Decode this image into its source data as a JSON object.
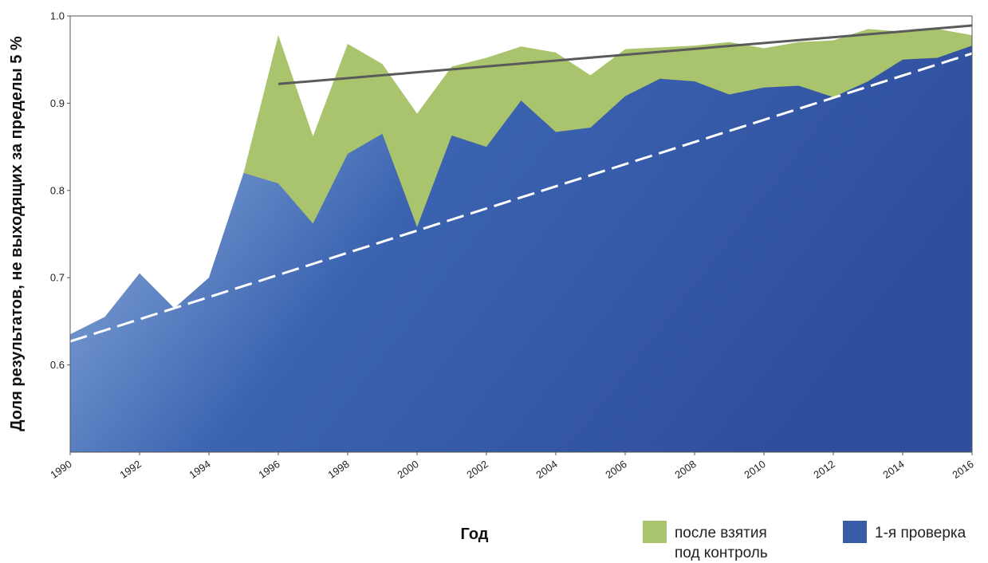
{
  "chart_data": {
    "type": "area",
    "xlabel": "Год",
    "ylabel": "Доля результатов, не выходящих за пределы 5 %",
    "xlim": [
      1990,
      2016
    ],
    "ylim": [
      0.5,
      1.0
    ],
    "x_ticks": [
      "1990",
      "1992",
      "1994",
      "1996",
      "1998",
      "2000",
      "2002",
      "2004",
      "2006",
      "2008",
      "2010",
      "2012",
      "2014",
      "2016"
    ],
    "y_ticks": [
      "0.6",
      "0.7",
      "0.8",
      "0.9",
      "1.0"
    ],
    "x": [
      1990,
      1991,
      1992,
      1993,
      1994,
      1995,
      1996,
      1997,
      1998,
      1999,
      2000,
      2001,
      2002,
      2003,
      2004,
      2005,
      2006,
      2007,
      2008,
      2009,
      2010,
      2011,
      2012,
      2013,
      2014,
      2015,
      2016
    ],
    "series": [
      {
        "name": "после взятия под контроль",
        "color": "#a9c46c",
        "values": [
          0.635,
          0.655,
          0.705,
          0.665,
          0.7,
          0.82,
          0.978,
          0.862,
          0.968,
          0.945,
          0.888,
          0.942,
          0.952,
          0.965,
          0.958,
          0.932,
          0.962,
          0.964,
          0.966,
          0.97,
          0.963,
          0.97,
          0.972,
          0.985,
          0.982,
          0.985,
          0.978
        ]
      },
      {
        "name": "1-я проверка",
        "color": "#3a5ca8",
        "values": [
          0.635,
          0.655,
          0.705,
          0.665,
          0.7,
          0.82,
          0.808,
          0.762,
          0.842,
          0.865,
          0.758,
          0.863,
          0.85,
          0.903,
          0.867,
          0.872,
          0.908,
          0.928,
          0.925,
          0.91,
          0.918,
          0.92,
          0.907,
          0.925,
          0.95,
          0.952,
          0.966
        ]
      }
    ],
    "trend_control": {
      "x": [
        1996,
        2016
      ],
      "y": [
        0.922,
        0.989
      ]
    },
    "trend_first": {
      "x": [
        1990,
        2016
      ],
      "y": [
        0.627,
        0.957
      ]
    },
    "legend": {
      "position": "bottom-right",
      "items": [
        {
          "lines": [
            "после взятия",
            "под контроль"
          ],
          "color": "#a9c46c"
        },
        {
          "lines": [
            "1-я проверка"
          ],
          "color": "#3a5ca8"
        }
      ]
    },
    "grid": false
  }
}
